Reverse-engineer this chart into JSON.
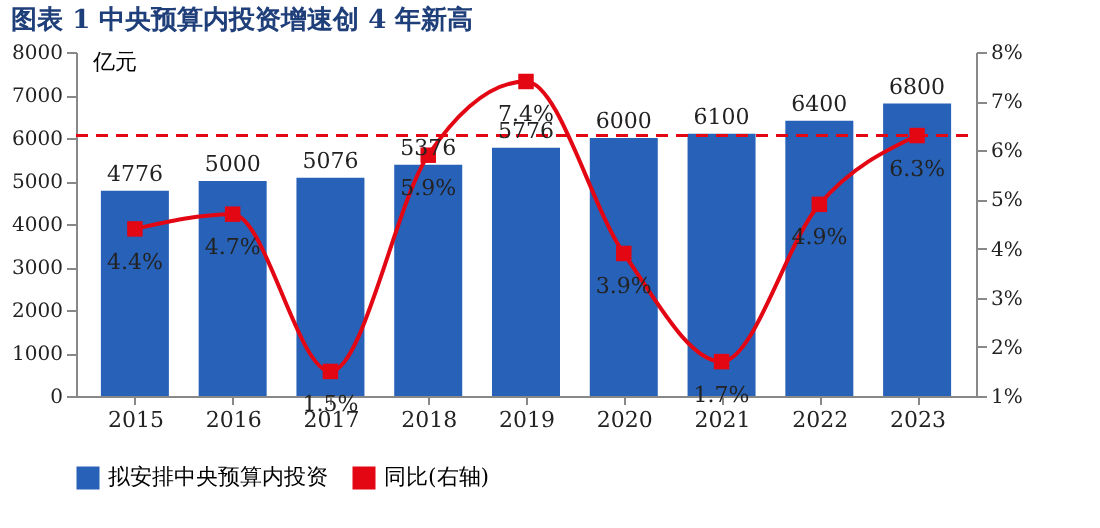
{
  "chart_data": {
    "type": "bar",
    "title": "图表 1  中央预算内投资增速创 4 年新高",
    "categories": [
      "2015",
      "2016",
      "2017",
      "2018",
      "2019",
      "2020",
      "2021",
      "2022",
      "2023"
    ],
    "ylabel": "亿元",
    "series": [
      {
        "name": "拟安排中央预算内投资",
        "color": "#2862b8",
        "values": [
          4776,
          5000,
          5076,
          5376,
          5776,
          6000,
          6100,
          6400,
          6800
        ],
        "data_labels": true
      },
      {
        "name": "同比(右轴)",
        "type": "line",
        "axis": "y2",
        "color": "#e30613",
        "marker": "square",
        "values": [
          4.4,
          4.7,
          1.5,
          5.9,
          7.4,
          3.9,
          1.7,
          4.9,
          6.3
        ],
        "value_labels": [
          "4.4%",
          "4.7%",
          "1.5%",
          "5.9%",
          "7.4%",
          "3.9%",
          "1.7%",
          "4.9%",
          "6.3%"
        ]
      }
    ],
    "ylim": [
      0,
      8000
    ],
    "yticks": [
      0,
      1000,
      2000,
      3000,
      4000,
      5000,
      6000,
      7000,
      8000
    ],
    "y2lim": [
      1,
      8
    ],
    "y2ticks": [
      {
        "value": 1,
        "label": "1%"
      },
      {
        "value": 2,
        "label": "2%"
      },
      {
        "value": 3,
        "label": "3%"
      },
      {
        "value": 4,
        "label": "4%"
      },
      {
        "value": 5,
        "label": "5%"
      },
      {
        "value": 6,
        "label": "6%"
      },
      {
        "value": 7,
        "label": "7%"
      },
      {
        "value": 8,
        "label": "8%"
      }
    ],
    "ref_lines": [
      {
        "axis": "y2",
        "value": 6.3,
        "label": null,
        "color": "#e30613",
        "line_style": "dashed"
      }
    ],
    "legend": "bottom",
    "grid": false
  }
}
